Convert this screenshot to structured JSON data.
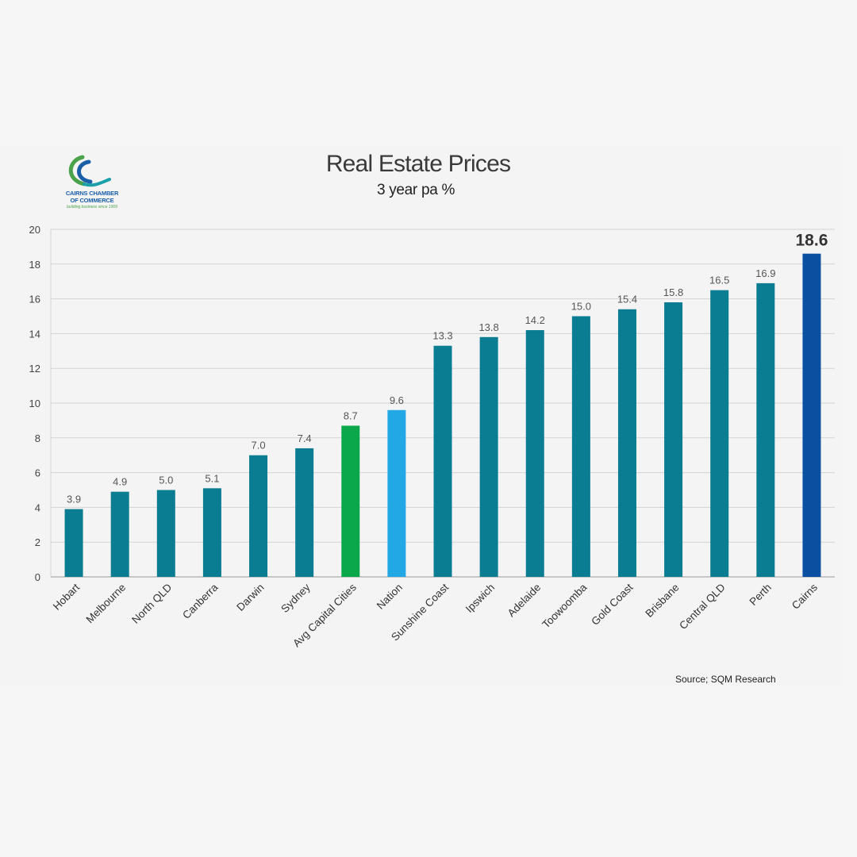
{
  "logo": {
    "line1": "CAIRNS CHAMBER",
    "line2": "OF COMMERCE",
    "tagline": "building business since 1909",
    "colors": {
      "blue": "#1a5fa8",
      "green": "#4aa24a",
      "teal": "#1aa0a8"
    }
  },
  "source": "Source; SQM Research",
  "chart_data": {
    "type": "bar",
    "title": "Real Estate Prices",
    "subtitle": "3 year pa %",
    "xlabel": "",
    "ylabel": "",
    "ylim": [
      0,
      20
    ],
    "yticks": [
      0,
      2,
      4,
      6,
      8,
      10,
      12,
      14,
      16,
      18,
      20
    ],
    "grid": true,
    "categories": [
      "Hobart",
      "Melbourne",
      "North QLD",
      "Canberra",
      "Darwin",
      "Sydney",
      "Avg Capital Cities",
      "Nation",
      "Sunshine Coast",
      "Ipswich",
      "Adelaide",
      "Toowoomba",
      "Gold Coast",
      "Brisbane",
      "Central QLD",
      "Perth",
      "Cairns"
    ],
    "values": [
      3.9,
      4.9,
      5.0,
      5.1,
      7.0,
      7.4,
      8.7,
      9.6,
      13.3,
      13.8,
      14.2,
      15.0,
      15.4,
      15.8,
      16.5,
      16.9,
      18.6
    ],
    "data_labels": [
      "3.9",
      "4.9",
      "5.0",
      "5.1",
      "7.0",
      "7.4",
      "8.7",
      "9.6",
      "13.3",
      "13.8",
      "14.2",
      "15.0",
      "15.4",
      "15.8",
      "16.5",
      "16.9",
      "18.6"
    ],
    "colors": [
      "#0a7d92",
      "#0a7d92",
      "#0a7d92",
      "#0a7d92",
      "#0a7d92",
      "#0a7d92",
      "#0aa84a",
      "#22a8e4",
      "#0a7d92",
      "#0a7d92",
      "#0a7d92",
      "#0a7d92",
      "#0a7d92",
      "#0a7d92",
      "#0a7d92",
      "#0a7d92",
      "#0a4fa0"
    ],
    "highlight_index": 16
  }
}
